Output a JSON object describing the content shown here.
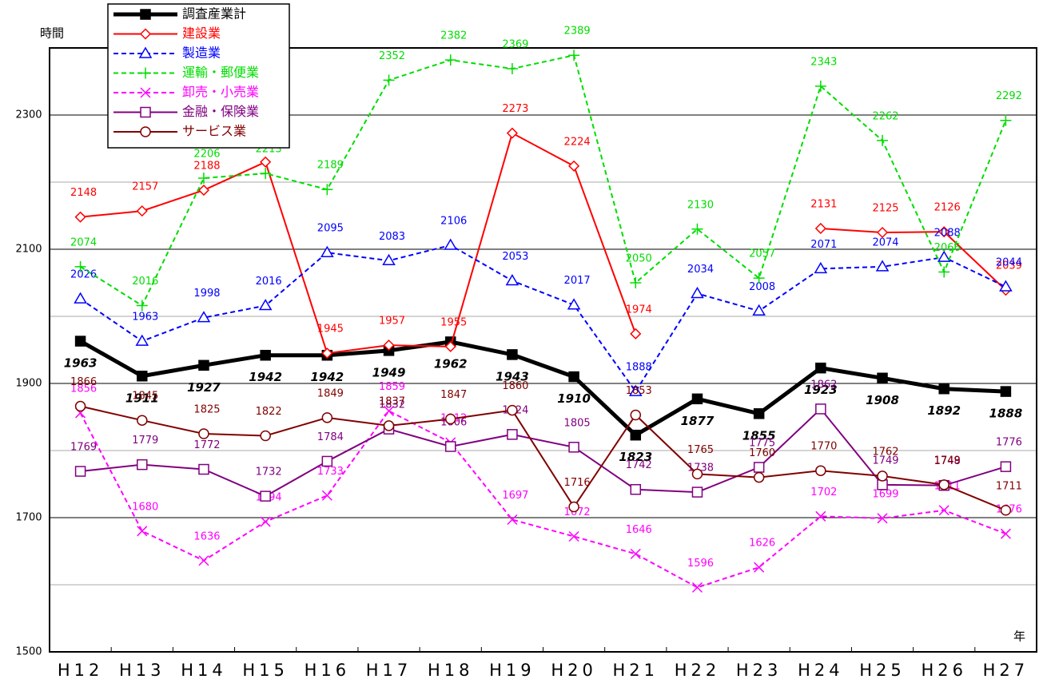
{
  "chart_data": {
    "type": "line",
    "y_label": "時間",
    "x_label": "年",
    "categories": [
      "H12",
      "H13",
      "H14",
      "H15",
      "H16",
      "H17",
      "H18",
      "H19",
      "H20",
      "H21",
      "H22",
      "H23",
      "H24",
      "H25",
      "H26",
      "H27"
    ],
    "ylim": [
      1500,
      2400
    ],
    "yticks": [
      1500,
      1700,
      1900,
      2100,
      2300
    ],
    "minor_yticks": [
      1600,
      1800,
      2000,
      2200
    ],
    "grid": true,
    "legend": "upper left",
    "series": [
      {
        "name": "調査産業計",
        "color": "#000000",
        "marker": "square-filled",
        "dash": false,
        "width": 5,
        "values": [
          1963,
          1911,
          1927,
          1942,
          1942,
          1949,
          1962,
          1943,
          1910,
          1823,
          1877,
          1855,
          1923,
          1908,
          1892,
          1888
        ]
      },
      {
        "name": "建設業",
        "color": "#ff0000",
        "marker": "diamond",
        "dash": false,
        "width": 2,
        "values": [
          2148,
          2157,
          2188,
          2230,
          1945,
          1957,
          1955,
          2273,
          2224,
          1974,
          null,
          null,
          2131,
          2125,
          2126,
          2039
        ]
      },
      {
        "name": "製造業",
        "color": "#0000ff",
        "marker": "triangle",
        "dash": true,
        "width": 2,
        "values": [
          2026,
          1963,
          1998,
          2016,
          2095,
          2083,
          2106,
          2053,
          2017,
          1888,
          2034,
          2008,
          2071,
          2074,
          2088,
          2044
        ]
      },
      {
        "name": "運輸・郵便業",
        "color": "#00dd00",
        "marker": "plus",
        "dash": true,
        "width": 2,
        "values": [
          2074,
          2016,
          2206,
          2213,
          2189,
          2352,
          2382,
          2369,
          2389,
          2050,
          2130,
          2057,
          2343,
          2262,
          2066,
          2292
        ]
      },
      {
        "name": "卸売・小売業",
        "color": "#ff00ff",
        "marker": "cross",
        "dash": true,
        "width": 2,
        "values": [
          1856,
          1680,
          1636,
          1694,
          1733,
          1859,
          1812,
          1697,
          1672,
          1646,
          1596,
          1626,
          1702,
          1699,
          1711,
          1676
        ]
      },
      {
        "name": "金融・保険業",
        "color": "#800080",
        "marker": "square",
        "dash": false,
        "width": 2,
        "values": [
          1769,
          1779,
          1772,
          1732,
          1784,
          1832,
          1806,
          1824,
          1805,
          1742,
          1738,
          1775,
          1862,
          1749,
          1748,
          1776
        ]
      },
      {
        "name": "サービス業",
        "color": "#800000",
        "marker": "circle",
        "dash": false,
        "width": 2,
        "values": [
          1866,
          1845,
          1825,
          1822,
          1849,
          1837,
          1847,
          1860,
          1716,
          1853,
          1765,
          1760,
          1770,
          1762,
          1749,
          1711
        ]
      }
    ]
  }
}
